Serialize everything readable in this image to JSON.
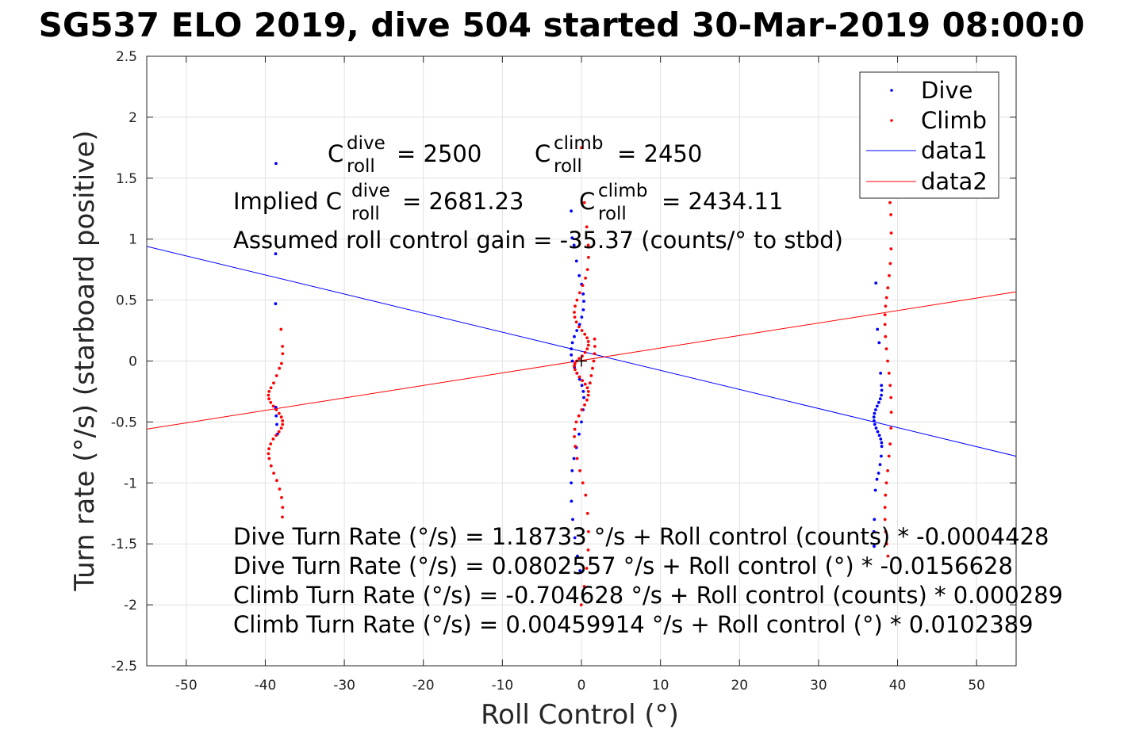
{
  "title": "SG537 ELO 2019, dive 504 started 30-Mar-2019 08:00:0",
  "chart_data": {
    "type": "scatter",
    "title": "SG537 ELO 2019, dive 504 started 30-Mar-2019 08:00:0",
    "xlabel": "Roll Control (°)",
    "ylabel": "Turn rate (°/s) (starboard positive)",
    "xlim": [
      -55,
      55
    ],
    "ylim": [
      -2.5,
      2.5
    ],
    "x_ticks": [
      "-50",
      "-40",
      "-30",
      "-20",
      "-10",
      "0",
      "10",
      "20",
      "30",
      "40",
      "50"
    ],
    "y_ticks": [
      "2.5",
      "2",
      "1.5",
      "1",
      "0.5",
      "0",
      "-0.5",
      "-1",
      "-1.5",
      "-2",
      "-2.5"
    ],
    "grid": true,
    "legend_position": "top-right",
    "series": [
      {
        "name": "Dive",
        "kind": "points",
        "color": "#0000ff",
        "clusters": [
          {
            "x": -38.5,
            "x_spread": 0.2,
            "y_values": [
              1.62,
              0.88,
              0.47,
              -0.38,
              -0.45,
              -0.52,
              -0.6
            ]
          },
          {
            "x": -0.5,
            "x_spread": 0.8,
            "y_values": [
              1.23,
              1.01,
              0.95,
              0.82,
              0.7,
              0.63,
              0.55,
              0.49,
              0.42,
              0.36,
              0.3,
              0.25,
              0.2,
              0.15,
              0.1,
              0.05,
              0.0,
              -0.05,
              -0.1,
              -0.15,
              -0.2,
              -0.25,
              -0.3,
              -0.4,
              -0.5,
              -0.6,
              -0.71,
              -0.8,
              -0.9,
              -1.0,
              -1.15,
              -1.3,
              -1.45,
              -1.6,
              -1.72
            ]
          },
          {
            "x": 37.5,
            "x_spread": 0.5,
            "y_values": [
              0.64,
              0.26,
              0.15,
              -0.1,
              -0.2,
              -0.24,
              -0.28,
              -0.31,
              -0.34,
              -0.37,
              -0.4,
              -0.43,
              -0.46,
              -0.49,
              -0.52,
              -0.55,
              -0.58,
              -0.61,
              -0.64,
              -0.67,
              -0.7,
              -0.78,
              -0.85,
              -0.92,
              -0.97,
              -1.06,
              -1.3,
              -1.4,
              -1.52
            ]
          }
        ]
      },
      {
        "name": "Climb",
        "kind": "points",
        "color": "#ff0000",
        "clusters": [
          {
            "x": -38.7,
            "x_spread": 0.9,
            "y_values": [
              0.26,
              0.12,
              0.06,
              -0.02,
              -0.06,
              -0.12,
              -0.18,
              -0.22,
              -0.25,
              -0.28,
              -0.31,
              -0.34,
              -0.37,
              -0.4,
              -0.43,
              -0.46,
              -0.49,
              -0.52,
              -0.55,
              -0.58,
              -0.61,
              -0.64,
              -0.68,
              -0.72,
              -0.76,
              -0.8,
              -0.86,
              -0.92,
              -0.98,
              -1.05,
              -1.12,
              -1.2,
              -1.28
            ]
          },
          {
            "x": 0.0,
            "x_spread": 0.9,
            "y_values": [
              1.75,
              1.3,
              1.1,
              0.95,
              0.85,
              0.75,
              0.68,
              0.62,
              0.56,
              0.5,
              0.45,
              0.4,
              0.36,
              0.32,
              0.28,
              0.25,
              0.22,
              0.19,
              0.16,
              0.13,
              0.1,
              0.07,
              0.04,
              0.02,
              0.0,
              -0.02,
              -0.04,
              -0.07,
              -0.1,
              -0.13,
              -0.16,
              -0.19,
              -0.22,
              -0.25,
              -0.28,
              -0.32,
              -0.36,
              -0.4,
              -0.45,
              -0.5,
              -0.56,
              -0.62,
              -0.7,
              -0.8,
              -0.9,
              -1.0,
              -1.1,
              -1.25,
              -1.4,
              -1.55,
              -1.7,
              -1.85,
              -2.0
            ]
          },
          {
            "x": 1.3,
            "x_spread": 0.4,
            "y_values": [
              0.18,
              0.12,
              0.06,
              0.0,
              -0.06,
              -0.12,
              -0.18
            ]
          },
          {
            "x": 38.8,
            "x_spread": 0.4,
            "y_values": [
              1.3,
              1.2,
              1.05,
              0.92,
              0.8,
              0.7,
              0.6,
              0.52,
              0.45,
              0.38,
              0.3,
              0.2,
              0.1,
              0.0,
              -0.1,
              -0.2,
              -0.3,
              -0.42,
              -0.55,
              -0.68,
              -0.78,
              -0.9,
              -1.0,
              -1.1,
              -1.2,
              -1.3,
              -1.4,
              -1.5,
              -1.6
            ]
          }
        ]
      },
      {
        "name": "data1",
        "kind": "line",
        "color": "#0000ff",
        "x": [
          -55,
          55
        ],
        "y": [
          0.941,
          -0.781
        ]
      },
      {
        "name": "data2",
        "kind": "line",
        "color": "#ff0000",
        "x": [
          -55,
          55
        ],
        "y": [
          -0.5585,
          0.5677
        ]
      }
    ],
    "annotations": {
      "c_dive_base": "C",
      "c_dive_sup": "dive",
      "c_dive_sub": "roll",
      "c_dive_value": "= 2500",
      "c_climb_base": "C",
      "c_climb_sup": "climb",
      "c_climb_sub": "roll",
      "c_climb_value": "= 2450",
      "implied_prefix": "Implied C",
      "implied_dive_sup": "dive",
      "implied_dive_sub": "roll",
      "implied_dive_value": "= 2681.23",
      "implied_climb_base": "C",
      "implied_climb_sup": "climb",
      "implied_climb_sub": "roll",
      "implied_climb_value": "= 2434.11",
      "gain": "Assumed roll control gain = -35.37 (counts/° to stbd)",
      "fit1": "Dive Turn Rate (°/s) = 1.18733 °/s + Roll control (counts) * -0.0004428",
      "fit2": "Dive Turn Rate (°/s) = 0.0802557 °/s + Roll control (°) * -0.0156628",
      "fit3": "Climb Turn Rate (°/s) = -0.704628 °/s + Roll control (counts) * 0.000289",
      "fit4": "Climb Turn Rate (°/s) = 0.00459914 °/s + Roll control (°) * 0.0102389"
    }
  }
}
